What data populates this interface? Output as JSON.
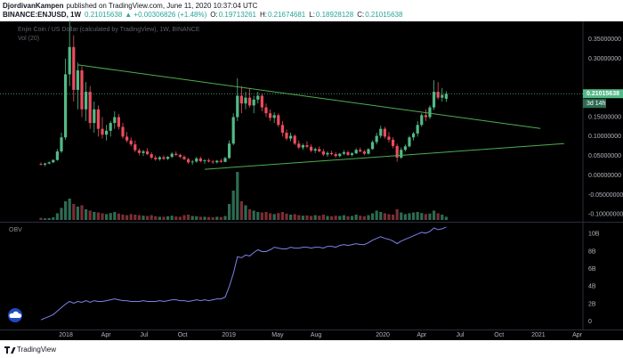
{
  "header": {
    "author": "DjordivanKampen",
    "published": "published on TradingView.com, June 11, 2020 10:37:04 UTC",
    "symbol": "BINANCE:ENJUSD, 1W",
    "price": "0.21015638",
    "change": "▲ +0.00306826 (+1.48%)",
    "ohlc": [
      {
        "label": "O:",
        "value": "0.19713261"
      },
      {
        "label": "H:",
        "value": "0.21674681"
      },
      {
        "label": "L:",
        "value": "0.18928128"
      },
      {
        "label": "C:",
        "value": "0.21015638"
      }
    ]
  },
  "chart_data": [
    {
      "type": "candlestick",
      "title": "Enjin Coin / US Dollar (calculated by TradingView), 1W, BINANCE",
      "indicator": "Vol (20)",
      "up_color": "#53b987",
      "down_color": "#eb4d5c",
      "volume_up_color": "#2e6b52",
      "volume_down_color": "#7a2e35",
      "xlim": [
        -10,
        132.4
      ],
      "ylim": [
        -0.114,
        0.389
      ],
      "volume_lim": [
        0,
        200
      ],
      "grid": false,
      "yticks": [
        {
          "value": 0.35,
          "label": "0.35000000"
        },
        {
          "value": 0.3,
          "label": "0.30000000"
        },
        {
          "value": 0.15,
          "label": "0.15000000"
        },
        {
          "value": 0.1,
          "label": "0.10000000"
        },
        {
          "value": 0.05,
          "label": "0.05000000"
        },
        {
          "value": 0,
          "label": "0.00000000"
        },
        {
          "value": -0.05,
          "label": "-0.05000000"
        },
        {
          "value": -0.1,
          "label": "-0.10000000"
        }
      ],
      "last_price": 0.21015638,
      "countdown": "3d 14h",
      "trendlines": [
        {
          "x": [
            9.1,
            122
          ],
          "y": [
            0.284,
            0.121
          ],
          "color": "#4caf50"
        },
        {
          "x": [
            40,
            127.8
          ],
          "y": [
            0.016,
            0.082
          ],
          "color": "#4caf50"
        }
      ],
      "candles": [
        [
          0.03,
          0.034,
          0.026,
          0.028
        ],
        [
          0.028,
          0.033,
          0.024,
          0.031
        ],
        [
          0.031,
          0.036,
          0.029,
          0.034
        ],
        [
          0.034,
          0.042,
          0.032,
          0.04
        ],
        [
          0.04,
          0.068,
          0.038,
          0.062
        ],
        [
          0.062,
          0.11,
          0.058,
          0.098
        ],
        [
          0.098,
          0.3,
          0.092,
          0.26
        ],
        [
          0.26,
          0.4,
          0.23,
          0.33
        ],
        [
          0.33,
          0.36,
          0.19,
          0.22
        ],
        [
          0.22,
          0.29,
          0.17,
          0.27
        ],
        [
          0.27,
          0.28,
          0.15,
          0.17
        ],
        [
          0.17,
          0.24,
          0.14,
          0.215
        ],
        [
          0.215,
          0.23,
          0.12,
          0.135
        ],
        [
          0.135,
          0.19,
          0.11,
          0.17
        ],
        [
          0.17,
          0.18,
          0.1,
          0.12
        ],
        [
          0.12,
          0.15,
          0.095,
          0.105
        ],
        [
          0.105,
          0.13,
          0.09,
          0.115
        ],
        [
          0.115,
          0.14,
          0.1,
          0.135
        ],
        [
          0.135,
          0.165,
          0.12,
          0.15
        ],
        [
          0.15,
          0.158,
          0.118,
          0.125
        ],
        [
          0.125,
          0.135,
          0.095,
          0.1
        ],
        [
          0.1,
          0.112,
          0.085,
          0.09
        ],
        [
          0.09,
          0.098,
          0.075,
          0.08
        ],
        [
          0.08,
          0.09,
          0.06,
          0.065
        ],
        [
          0.065,
          0.07,
          0.052,
          0.058
        ],
        [
          0.058,
          0.066,
          0.05,
          0.062
        ],
        [
          0.062,
          0.07,
          0.052,
          0.055
        ],
        [
          0.055,
          0.06,
          0.042,
          0.046
        ],
        [
          0.046,
          0.052,
          0.038,
          0.042
        ],
        [
          0.042,
          0.05,
          0.038,
          0.047
        ],
        [
          0.047,
          0.052,
          0.04,
          0.043
        ],
        [
          0.043,
          0.05,
          0.04,
          0.048
        ],
        [
          0.048,
          0.06,
          0.045,
          0.056
        ],
        [
          0.056,
          0.062,
          0.05,
          0.053
        ],
        [
          0.053,
          0.056,
          0.045,
          0.048
        ],
        [
          0.048,
          0.052,
          0.04,
          0.042
        ],
        [
          0.042,
          0.046,
          0.03,
          0.034
        ],
        [
          0.034,
          0.04,
          0.028,
          0.036
        ],
        [
          0.036,
          0.048,
          0.033,
          0.044
        ],
        [
          0.044,
          0.048,
          0.034,
          0.037
        ],
        [
          0.037,
          0.042,
          0.03,
          0.039
        ],
        [
          0.039,
          0.044,
          0.034,
          0.036
        ],
        [
          0.036,
          0.04,
          0.03,
          0.034
        ],
        [
          0.034,
          0.04,
          0.031,
          0.038
        ],
        [
          0.038,
          0.043,
          0.033,
          0.035
        ],
        [
          0.035,
          0.048,
          0.034,
          0.045
        ],
        [
          0.045,
          0.09,
          0.043,
          0.082
        ],
        [
          0.082,
          0.16,
          0.078,
          0.15
        ],
        [
          0.15,
          0.25,
          0.14,
          0.205
        ],
        [
          0.205,
          0.23,
          0.16,
          0.185
        ],
        [
          0.185,
          0.215,
          0.17,
          0.2
        ],
        [
          0.2,
          0.225,
          0.175,
          0.18
        ],
        [
          0.18,
          0.205,
          0.16,
          0.195
        ],
        [
          0.195,
          0.215,
          0.185,
          0.205
        ],
        [
          0.205,
          0.21,
          0.165,
          0.175
        ],
        [
          0.175,
          0.185,
          0.15,
          0.16
        ],
        [
          0.16,
          0.17,
          0.14,
          0.148
        ],
        [
          0.148,
          0.162,
          0.135,
          0.155
        ],
        [
          0.155,
          0.16,
          0.125,
          0.13
        ],
        [
          0.13,
          0.14,
          0.1,
          0.11
        ],
        [
          0.11,
          0.118,
          0.09,
          0.095
        ],
        [
          0.095,
          0.11,
          0.088,
          0.102
        ],
        [
          0.102,
          0.106,
          0.078,
          0.082
        ],
        [
          0.082,
          0.09,
          0.068,
          0.072
        ],
        [
          0.072,
          0.082,
          0.066,
          0.078
        ],
        [
          0.078,
          0.088,
          0.07,
          0.074
        ],
        [
          0.074,
          0.08,
          0.06,
          0.064
        ],
        [
          0.064,
          0.072,
          0.058,
          0.068
        ],
        [
          0.068,
          0.075,
          0.06,
          0.062
        ],
        [
          0.062,
          0.068,
          0.05,
          0.054
        ],
        [
          0.054,
          0.062,
          0.048,
          0.058
        ],
        [
          0.058,
          0.064,
          0.052,
          0.055
        ],
        [
          0.055,
          0.06,
          0.046,
          0.05
        ],
        [
          0.05,
          0.058,
          0.047,
          0.056
        ],
        [
          0.056,
          0.065,
          0.052,
          0.06
        ],
        [
          0.06,
          0.064,
          0.05,
          0.053
        ],
        [
          0.053,
          0.06,
          0.049,
          0.057
        ],
        [
          0.057,
          0.07,
          0.055,
          0.066
        ],
        [
          0.066,
          0.072,
          0.06,
          0.062
        ],
        [
          0.062,
          0.066,
          0.052,
          0.056
        ],
        [
          0.056,
          0.07,
          0.054,
          0.068
        ],
        [
          0.068,
          0.09,
          0.066,
          0.086
        ],
        [
          0.086,
          0.11,
          0.08,
          0.102
        ],
        [
          0.102,
          0.128,
          0.096,
          0.12
        ],
        [
          0.12,
          0.125,
          0.095,
          0.1
        ],
        [
          0.1,
          0.112,
          0.085,
          0.092
        ],
        [
          0.092,
          0.098,
          0.07,
          0.076
        ],
        [
          0.076,
          0.082,
          0.036,
          0.046
        ],
        [
          0.046,
          0.072,
          0.043,
          0.066
        ],
        [
          0.066,
          0.08,
          0.062,
          0.075
        ],
        [
          0.075,
          0.102,
          0.072,
          0.098
        ],
        [
          0.098,
          0.112,
          0.09,
          0.108
        ],
        [
          0.108,
          0.14,
          0.1,
          0.13
        ],
        [
          0.13,
          0.16,
          0.125,
          0.155
        ],
        [
          0.155,
          0.17,
          0.14,
          0.15
        ],
        [
          0.15,
          0.18,
          0.145,
          0.175
        ],
        [
          0.175,
          0.245,
          0.168,
          0.215
        ],
        [
          0.215,
          0.24,
          0.195,
          0.2
        ],
        [
          0.2,
          0.225,
          0.19,
          0.207
        ],
        [
          0.19713261,
          0.21674681,
          0.18928128,
          0.21015638
        ]
      ],
      "volumes": [
        8,
        6,
        7,
        10,
        25,
        45,
        70,
        80,
        60,
        50,
        55,
        40,
        35,
        30,
        28,
        25,
        22,
        26,
        30,
        24,
        20,
        18,
        22,
        20,
        18,
        16,
        15,
        18,
        14,
        12,
        12,
        14,
        16,
        13,
        12,
        18,
        20,
        15,
        14,
        12,
        12,
        11,
        10,
        12,
        11,
        15,
        60,
        110,
        180,
        70,
        55,
        40,
        35,
        30,
        28,
        30,
        25,
        22,
        26,
        30,
        24,
        20,
        22,
        18,
        16,
        17,
        15,
        18,
        16,
        20,
        15,
        14,
        16,
        15,
        18,
        14,
        15,
        20,
        16,
        14,
        18,
        25,
        35,
        30,
        25,
        22,
        20,
        40,
        28,
        22,
        25,
        28,
        30,
        26,
        22,
        24,
        35,
        25,
        20,
        12
      ]
    },
    {
      "type": "line",
      "title": "OBV",
      "color": "#7b83eb",
      "xlim": [
        -10,
        132.4
      ],
      "ylim": [
        -0.9,
        11.1
      ],
      "yticks": [
        0,
        {
          "value": 2,
          "label": "2B"
        },
        {
          "value": 4,
          "label": "4B"
        },
        {
          "value": 6,
          "label": "6B"
        },
        {
          "value": 8,
          "label": "8B"
        },
        {
          "value": 10,
          "label": "10B"
        }
      ],
      "xticks": [
        {
          "value": 6.1,
          "label": "2018"
        },
        {
          "value": 15.9,
          "label": "Apr"
        },
        {
          "value": 25.2,
          "label": "Jul"
        },
        {
          "value": 34.6,
          "label": "Oct"
        },
        {
          "value": 45.9,
          "label": "2019"
        },
        {
          "value": 57.8,
          "label": "May"
        },
        {
          "value": 67.2,
          "label": "Aug"
        },
        {
          "value": 83.5,
          "label": "2020"
        },
        {
          "value": 93,
          "label": "Apr"
        },
        {
          "value": 102.4,
          "label": "Jul"
        },
        {
          "value": 111.9,
          "label": "Oct"
        },
        {
          "value": 121.5,
          "label": "2021"
        },
        {
          "value": 131,
          "label": "Apr"
        }
      ],
      "values": [
        0.2,
        0.4,
        0.6,
        0.8,
        1.2,
        1.6,
        2.0,
        2.3,
        2.1,
        2.3,
        2.2,
        2.4,
        2.2,
        2.4,
        2.3,
        2.3,
        2.4,
        2.5,
        2.6,
        2.5,
        2.4,
        2.4,
        2.3,
        2.3,
        2.3,
        2.4,
        2.3,
        2.3,
        2.3,
        2.4,
        2.3,
        2.4,
        2.5,
        2.5,
        2.4,
        2.4,
        2.3,
        2.4,
        2.5,
        2.4,
        2.5,
        2.4,
        2.5,
        2.6,
        2.6,
        2.8,
        4.0,
        5.5,
        7.4,
        7.3,
        7.6,
        7.5,
        7.9,
        8.2,
        8.0,
        8.0,
        8.2,
        8.5,
        8.4,
        8.3,
        8.3,
        8.5,
        8.4,
        8.4,
        8.5,
        8.5,
        8.4,
        8.5,
        8.5,
        8.4,
        8.6,
        8.6,
        8.5,
        8.7,
        8.8,
        8.7,
        8.8,
        8.9,
        8.8,
        8.8,
        9.0,
        9.3,
        9.5,
        9.7,
        9.5,
        9.4,
        9.2,
        8.9,
        9.2,
        9.4,
        9.6,
        9.8,
        10.0,
        10.2,
        10.1,
        10.3,
        10.7,
        10.5,
        10.6,
        10.8
      ]
    }
  ],
  "footer": {
    "brand": "TradingView"
  }
}
